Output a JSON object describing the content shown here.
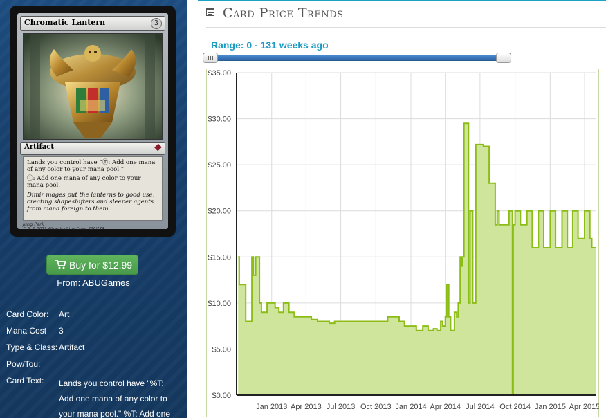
{
  "card": {
    "name": "Chromatic Lantern",
    "mana_cost_symbol": "3",
    "type_line": "Artifact",
    "rules_text_1": "Lands you control have “Ⓣ: Add one mana of any color to your mana pool.”",
    "rules_text_2": "Ⓣ: Add one mana of any color to your mana pool.",
    "flavor_text": "Dimir mages put the lanterns to good use, creating shapeshifters and sleeper agents from mana foreign to them.",
    "artist": "Jung Park",
    "footer": "™ & © 2012 Wizards of the Coast 226/274"
  },
  "buy": {
    "icon": "shopping-cart-icon",
    "label": "Buy for $12.99",
    "from": "From: ABUGames"
  },
  "details": {
    "color_label": "Card Color:",
    "color_value": "Art",
    "mana_label": "Mana Cost",
    "mana_value": "3",
    "type_label": "Type & Class:",
    "type_value": "Artifact",
    "pow_label": "Pow/Tou:",
    "pow_value": "",
    "text_label": "Card Text:",
    "text_value": "Lands you control have \"%T: Add one mana of any color to your mana pool.\" %T: Add one"
  },
  "section": {
    "icon": "calendar-icon",
    "title": "Card Price Trends"
  },
  "range": {
    "label": "Range: 0 - 131 weeks ago",
    "min_weeks": 0,
    "max_weeks": 131
  },
  "colors": {
    "accent": "#1aa3c4",
    "line": "#8cbd17",
    "fill": "#cfe59b",
    "button": "#55a857"
  },
  "chart_data": {
    "type": "area",
    "title": "",
    "xlabel": "",
    "ylabel": "",
    "ylim": [
      0,
      35
    ],
    "x_tick_labels": [
      "Jan 2013",
      "Apr 2013",
      "Jul 2013",
      "Oct 2013",
      "Jan 2014",
      "Apr 2014",
      "Jul 2014",
      "Oct 2014",
      "Jan 2015",
      "Apr 2015"
    ],
    "y_tick_labels": [
      "$0.00",
      "$5.00",
      "$10.00",
      "$15.00",
      "$20.00",
      "$25.00",
      "$30.00",
      "$35.00"
    ],
    "y_ticks": [
      0,
      5,
      10,
      15,
      20,
      25,
      30,
      35
    ],
    "grid": true,
    "legend": "none",
    "series": [
      {
        "x": [
          "2012-10-05",
          "2012-10-08",
          "2012-10-20",
          "2012-10-25",
          "2012-11-10",
          "2012-11-14",
          "2012-11-20",
          "2012-11-30",
          "2012-12-05",
          "2012-12-20",
          "2013-01-01",
          "2013-01-10",
          "2013-01-20",
          "2013-02-01",
          "2013-02-15",
          "2013-03-01",
          "2013-03-15",
          "2013-04-01",
          "2013-04-15",
          "2013-05-01",
          "2013-06-01",
          "2013-06-15",
          "2013-07-01",
          "2013-08-01",
          "2013-09-01",
          "2013-10-01",
          "2013-11-01",
          "2013-12-01",
          "2013-12-15",
          "2014-01-01",
          "2014-01-15",
          "2014-02-01",
          "2014-02-15",
          "2014-03-01",
          "2014-03-10",
          "2014-03-20",
          "2014-03-25",
          "2014-04-01",
          "2014-04-05",
          "2014-04-10",
          "2014-04-15",
          "2014-04-25",
          "2014-05-01",
          "2014-05-05",
          "2014-05-10",
          "2014-05-13",
          "2014-05-16",
          "2014-05-20",
          "2014-06-01",
          "2014-06-05",
          "2014-06-12",
          "2014-06-20",
          "2014-07-01",
          "2014-07-10",
          "2014-07-25",
          "2014-08-10",
          "2014-08-15",
          "2014-08-20",
          "2014-09-01",
          "2014-09-15",
          "2014-09-24",
          "2014-09-26",
          "2014-10-01",
          "2014-10-15",
          "2014-11-01",
          "2014-11-15",
          "2014-12-01",
          "2014-12-15",
          "2015-01-01",
          "2015-01-15",
          "2015-02-01",
          "2015-02-15",
          "2015-03-01",
          "2015-03-15",
          "2015-04-01",
          "2015-04-15",
          "2015-04-20"
        ],
        "y": [
          15,
          12,
          12,
          8,
          15,
          13,
          15,
          10,
          9,
          10,
          10,
          9.5,
          9,
          10,
          9,
          8.5,
          8.5,
          8.5,
          8.2,
          8,
          7.8,
          8,
          8,
          8,
          8,
          8,
          8.5,
          8,
          7.5,
          7.5,
          7,
          7.5,
          7,
          7.2,
          7,
          8,
          7.5,
          8.5,
          12,
          8.5,
          7,
          9,
          8.5,
          10,
          15,
          14,
          15,
          29.5,
          10,
          20,
          10,
          27.2,
          27.2,
          27,
          23,
          18.5,
          20,
          18.5,
          18.5,
          20,
          0,
          18.5,
          20,
          18.5,
          20,
          16,
          20,
          16,
          20,
          16,
          20,
          16,
          20,
          17,
          20,
          17,
          16
        ]
      }
    ]
  }
}
